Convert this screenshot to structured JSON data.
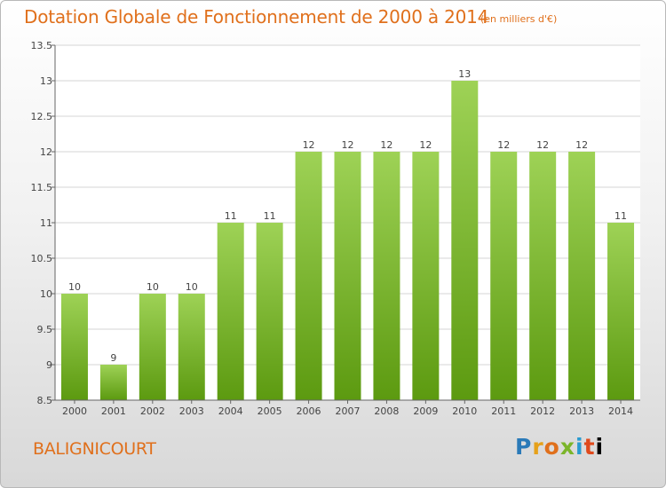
{
  "header": {
    "title": "Dotation Globale de Fonctionnement de 2000 à 2014",
    "unit": "(en milliers d'€)"
  },
  "footer": {
    "commune": "BALIGNICOURT",
    "logo_text": "Proxiti"
  },
  "colors": {
    "bar_top": "#9ed256",
    "bar_bottom": "#5c9a10",
    "text_accent": "#e0701c"
  },
  "chart_data": {
    "type": "bar",
    "title": "Dotation Globale de Fonctionnement de 2000 à 2014",
    "subtitle": "(en milliers d'€)",
    "xlabel": "",
    "ylabel": "",
    "categories": [
      "2000",
      "2001",
      "2002",
      "2003",
      "2004",
      "2005",
      "2006",
      "2007",
      "2008",
      "2009",
      "2010",
      "2011",
      "2012",
      "2013",
      "2014"
    ],
    "values": [
      10,
      9,
      10,
      10,
      11,
      11,
      12,
      12,
      12,
      12,
      13,
      12,
      12,
      12,
      11
    ],
    "data_labels": [
      "10",
      "9",
      "10",
      "10",
      "11",
      "11",
      "12",
      "12",
      "12",
      "12",
      "13",
      "12",
      "12",
      "12",
      "11"
    ],
    "ylim": [
      8.5,
      13.5
    ],
    "yticks": [
      8.5,
      9,
      9.5,
      10,
      10.5,
      11,
      11.5,
      12,
      12.5,
      13,
      13.5
    ],
    "ytick_labels": [
      "8.5",
      "9",
      "9.5",
      "10",
      "10.5",
      "11",
      "11.5",
      "12",
      "12.5",
      "13",
      "13.5"
    ],
    "grid": true,
    "legend": false
  }
}
